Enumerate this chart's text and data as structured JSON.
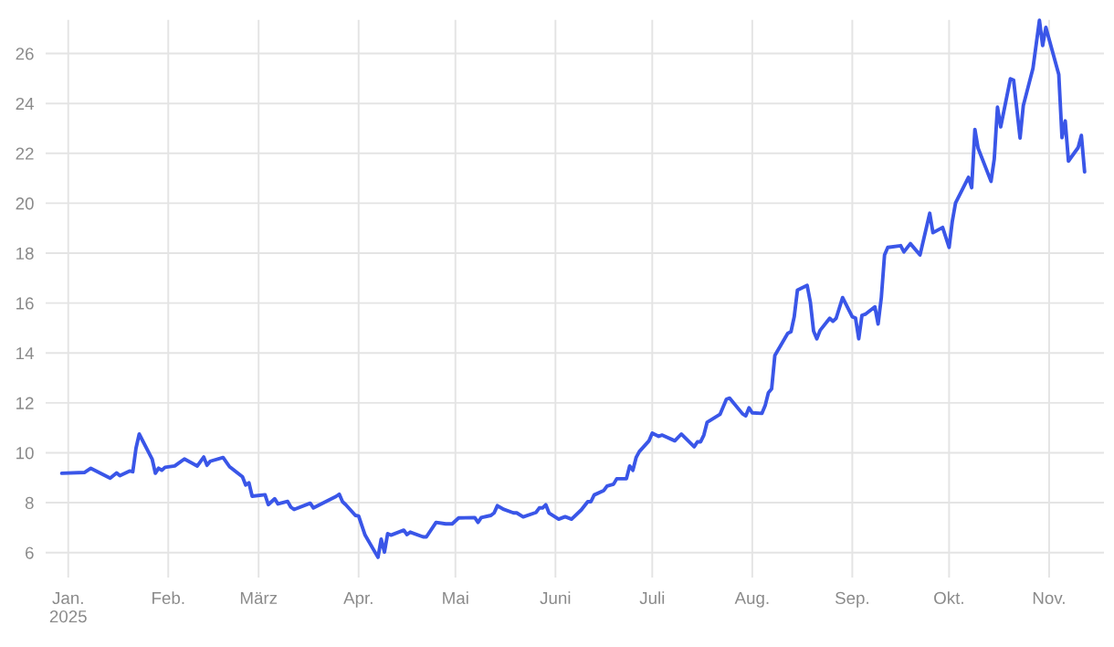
{
  "chart_data": {
    "type": "line",
    "x": [
      "2024-12-30",
      "2025-01-06",
      "2025-01-08",
      "2025-01-14",
      "2025-01-16",
      "2025-01-17",
      "2025-01-20",
      "2025-01-21",
      "2025-01-22",
      "2025-01-23",
      "2025-01-27",
      "2025-01-28",
      "2025-01-29",
      "2025-01-30",
      "2025-01-31",
      "2025-02-03",
      "2025-02-06",
      "2025-02-10",
      "2025-02-12",
      "2025-02-13",
      "2025-02-14",
      "2025-02-18",
      "2025-02-20",
      "2025-02-24",
      "2025-02-25",
      "2025-02-26",
      "2025-02-27",
      "2025-03-03",
      "2025-03-04",
      "2025-03-06",
      "2025-03-07",
      "2025-03-10",
      "2025-03-11",
      "2025-03-12",
      "2025-03-17",
      "2025-03-18",
      "2025-03-25",
      "2025-03-26",
      "2025-03-27",
      "2025-03-28",
      "2025-03-31",
      "2025-04-01",
      "2025-04-03",
      "2025-04-07",
      "2025-04-08",
      "2025-04-09",
      "2025-04-10",
      "2025-04-11",
      "2025-04-15",
      "2025-04-16",
      "2025-04-17",
      "2025-04-21",
      "2025-04-22",
      "2025-04-25",
      "2025-04-28",
      "2025-04-30",
      "2025-05-02",
      "2025-05-07",
      "2025-05-08",
      "2025-05-09",
      "2025-05-12",
      "2025-05-13",
      "2025-05-14",
      "2025-05-16",
      "2025-05-19",
      "2025-05-20",
      "2025-05-22",
      "2025-05-26",
      "2025-05-27",
      "2025-05-28",
      "2025-05-29",
      "2025-05-30",
      "2025-06-02",
      "2025-06-04",
      "2025-06-06",
      "2025-06-09",
      "2025-06-11",
      "2025-06-12",
      "2025-06-13",
      "2025-06-16",
      "2025-06-17",
      "2025-06-19",
      "2025-06-20",
      "2025-06-23",
      "2025-06-24",
      "2025-06-25",
      "2025-06-26",
      "2025-06-27",
      "2025-06-30",
      "2025-07-01",
      "2025-07-03",
      "2025-07-04",
      "2025-07-08",
      "2025-07-10",
      "2025-07-14",
      "2025-07-15",
      "2025-07-16",
      "2025-07-17",
      "2025-07-18",
      "2025-07-22",
      "2025-07-24",
      "2025-07-25",
      "2025-07-29",
      "2025-07-30",
      "2025-07-31",
      "2025-08-01",
      "2025-08-04",
      "2025-08-05",
      "2025-08-06",
      "2025-08-07",
      "2025-08-08",
      "2025-08-12",
      "2025-08-13",
      "2025-08-14",
      "2025-08-15",
      "2025-08-18",
      "2025-08-19",
      "2025-08-20",
      "2025-08-21",
      "2025-08-22",
      "2025-08-25",
      "2025-08-26",
      "2025-08-27",
      "2025-08-29",
      "2025-09-01",
      "2025-09-02",
      "2025-09-03",
      "2025-09-04",
      "2025-09-05",
      "2025-09-08",
      "2025-09-09",
      "2025-09-10",
      "2025-09-11",
      "2025-09-12",
      "2025-09-16",
      "2025-09-17",
      "2025-09-19",
      "2025-09-22",
      "2025-09-25",
      "2025-09-26",
      "2025-09-29",
      "2025-10-01",
      "2025-10-02",
      "2025-10-03",
      "2025-10-07",
      "2025-10-08",
      "2025-10-09",
      "2025-10-10",
      "2025-10-14",
      "2025-10-15",
      "2025-10-16",
      "2025-10-17",
      "2025-10-20",
      "2025-10-21",
      "2025-10-23",
      "2025-10-24",
      "2025-10-27",
      "2025-10-29",
      "2025-10-30",
      "2025-10-31",
      "2025-11-04",
      "2025-11-05",
      "2025-11-06",
      "2025-11-07",
      "2025-11-10",
      "2025-11-11",
      "2025-11-12"
    ],
    "series": [
      {
        "color": "#3a56e8",
        "values": [
          9.18,
          9.21,
          9.38,
          8.98,
          9.19,
          9.08,
          9.27,
          9.24,
          10.18,
          10.75,
          9.75,
          9.18,
          9.38,
          9.3,
          9.42,
          9.47,
          9.75,
          9.47,
          9.83,
          9.5,
          9.66,
          9.81,
          9.44,
          9.04,
          8.71,
          8.8,
          8.26,
          8.32,
          7.92,
          8.16,
          7.95,
          8.05,
          7.82,
          7.73,
          7.98,
          7.79,
          8.25,
          8.34,
          8.04,
          7.92,
          7.49,
          7.47,
          6.7,
          5.81,
          6.54,
          6.02,
          6.76,
          6.7,
          6.9,
          6.72,
          6.82,
          6.63,
          6.63,
          7.21,
          7.15,
          7.15,
          7.39,
          7.4,
          7.21,
          7.4,
          7.49,
          7.59,
          7.88,
          7.73,
          7.59,
          7.59,
          7.43,
          7.61,
          7.79,
          7.79,
          7.92,
          7.59,
          7.34,
          7.44,
          7.34,
          7.71,
          8.04,
          8.04,
          8.31,
          8.49,
          8.67,
          8.74,
          8.96,
          8.96,
          9.47,
          9.3,
          9.81,
          10.05,
          10.48,
          10.79,
          10.66,
          10.71,
          10.48,
          10.75,
          10.24,
          10.44,
          10.44,
          10.71,
          11.22,
          11.54,
          12.15,
          12.19,
          11.56,
          11.48,
          11.8,
          11.6,
          11.58,
          11.89,
          12.41,
          12.56,
          13.9,
          14.79,
          14.85,
          15.45,
          16.52,
          16.71,
          16.04,
          14.88,
          14.57,
          14.9,
          15.39,
          15.27,
          15.39,
          16.22,
          15.45,
          15.4,
          14.57,
          15.51,
          15.55,
          15.85,
          15.16,
          16.22,
          17.93,
          18.23,
          18.3,
          18.05,
          18.38,
          17.93,
          19.6,
          18.82,
          19.03,
          18.23,
          19.28,
          20.01,
          21.04,
          20.62,
          22.96,
          22.2,
          20.88,
          21.77,
          23.85,
          23.06,
          24.99,
          24.93,
          22.61,
          23.91,
          25.41,
          27.33,
          26.32,
          27.05,
          25.16,
          22.63,
          23.3,
          21.69,
          22.23,
          22.72,
          21.26
        ]
      }
    ],
    "xlim": [
      "2024-12-25",
      "2025-11-18"
    ],
    "xticks": [
      {
        "value": "2025-01-01",
        "label": "Jan.\n2025"
      },
      {
        "value": "2025-02-01",
        "label": "Feb."
      },
      {
        "value": "2025-03-01",
        "label": "März"
      },
      {
        "value": "2025-04-01",
        "label": "Apr."
      },
      {
        "value": "2025-05-01",
        "label": "Mai"
      },
      {
        "value": "2025-06-01",
        "label": "Juni"
      },
      {
        "value": "2025-07-01",
        "label": "Juli"
      },
      {
        "value": "2025-08-01",
        "label": "Aug."
      },
      {
        "value": "2025-09-01",
        "label": "Sep."
      },
      {
        "value": "2025-10-01",
        "label": "Okt."
      },
      {
        "value": "2025-11-01",
        "label": "Nov."
      }
    ],
    "ylim": [
      5,
      27.35
    ],
    "yticks": [
      6,
      8,
      10,
      12,
      14,
      16,
      18,
      20,
      22,
      24,
      26
    ],
    "grid": true
  }
}
